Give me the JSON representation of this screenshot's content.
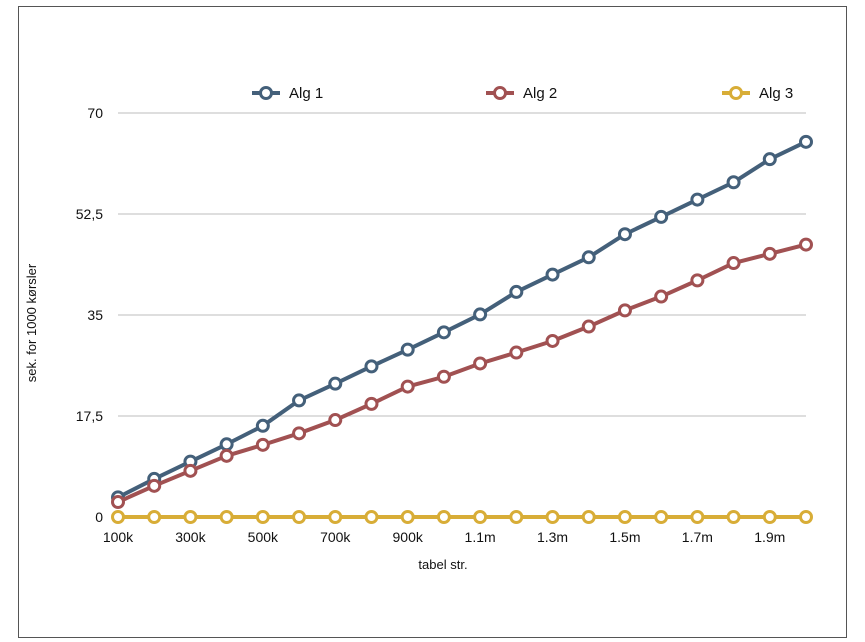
{
  "chart_data": {
    "type": "line",
    "title": "",
    "xlabel": "tabel str.",
    "ylabel": "sek. for 1000 kørsler",
    "categories": [
      "100k",
      "200k",
      "300k",
      "400k",
      "500k",
      "600k",
      "700k",
      "800k",
      "900k",
      "1m",
      "1.1m",
      "1.2m",
      "1.3m",
      "1.4m",
      "1.5m",
      "1.6m",
      "1.7m",
      "1.8m",
      "1.9m",
      "2m"
    ],
    "x_tick_labels": [
      "100k",
      "300k",
      "500k",
      "700k",
      "900k",
      "1.1m",
      "1.3m",
      "1.5m",
      "1.7m",
      "1.9m"
    ],
    "y_ticks": [
      "0",
      "17,5",
      "35",
      "52,5",
      "70"
    ],
    "ylim": [
      0,
      70
    ],
    "grid": true,
    "legend_position": "top",
    "series": [
      {
        "name": "Alg 1",
        "color": "#44607a",
        "values": [
          3.4,
          6.6,
          9.6,
          12.6,
          15.8,
          20.2,
          23.1,
          26.1,
          29.0,
          32.0,
          35.1,
          39.0,
          42.0,
          45.0,
          49.0,
          52.0,
          55.0,
          58.0,
          62.0,
          65.0
        ]
      },
      {
        "name": "Alg 2",
        "color": "#a15152",
        "values": [
          2.6,
          5.4,
          8.0,
          10.6,
          12.5,
          14.5,
          16.8,
          19.6,
          22.6,
          24.3,
          26.6,
          28.5,
          30.5,
          33.0,
          35.8,
          38.2,
          41.0,
          44.0,
          45.6,
          47.2
        ]
      },
      {
        "name": "Alg 3",
        "color": "#d8ad37",
        "values": [
          0,
          0,
          0,
          0,
          0,
          0,
          0,
          0,
          0,
          0,
          0,
          0,
          0,
          0,
          0,
          0,
          0,
          0,
          0,
          0
        ]
      }
    ]
  }
}
